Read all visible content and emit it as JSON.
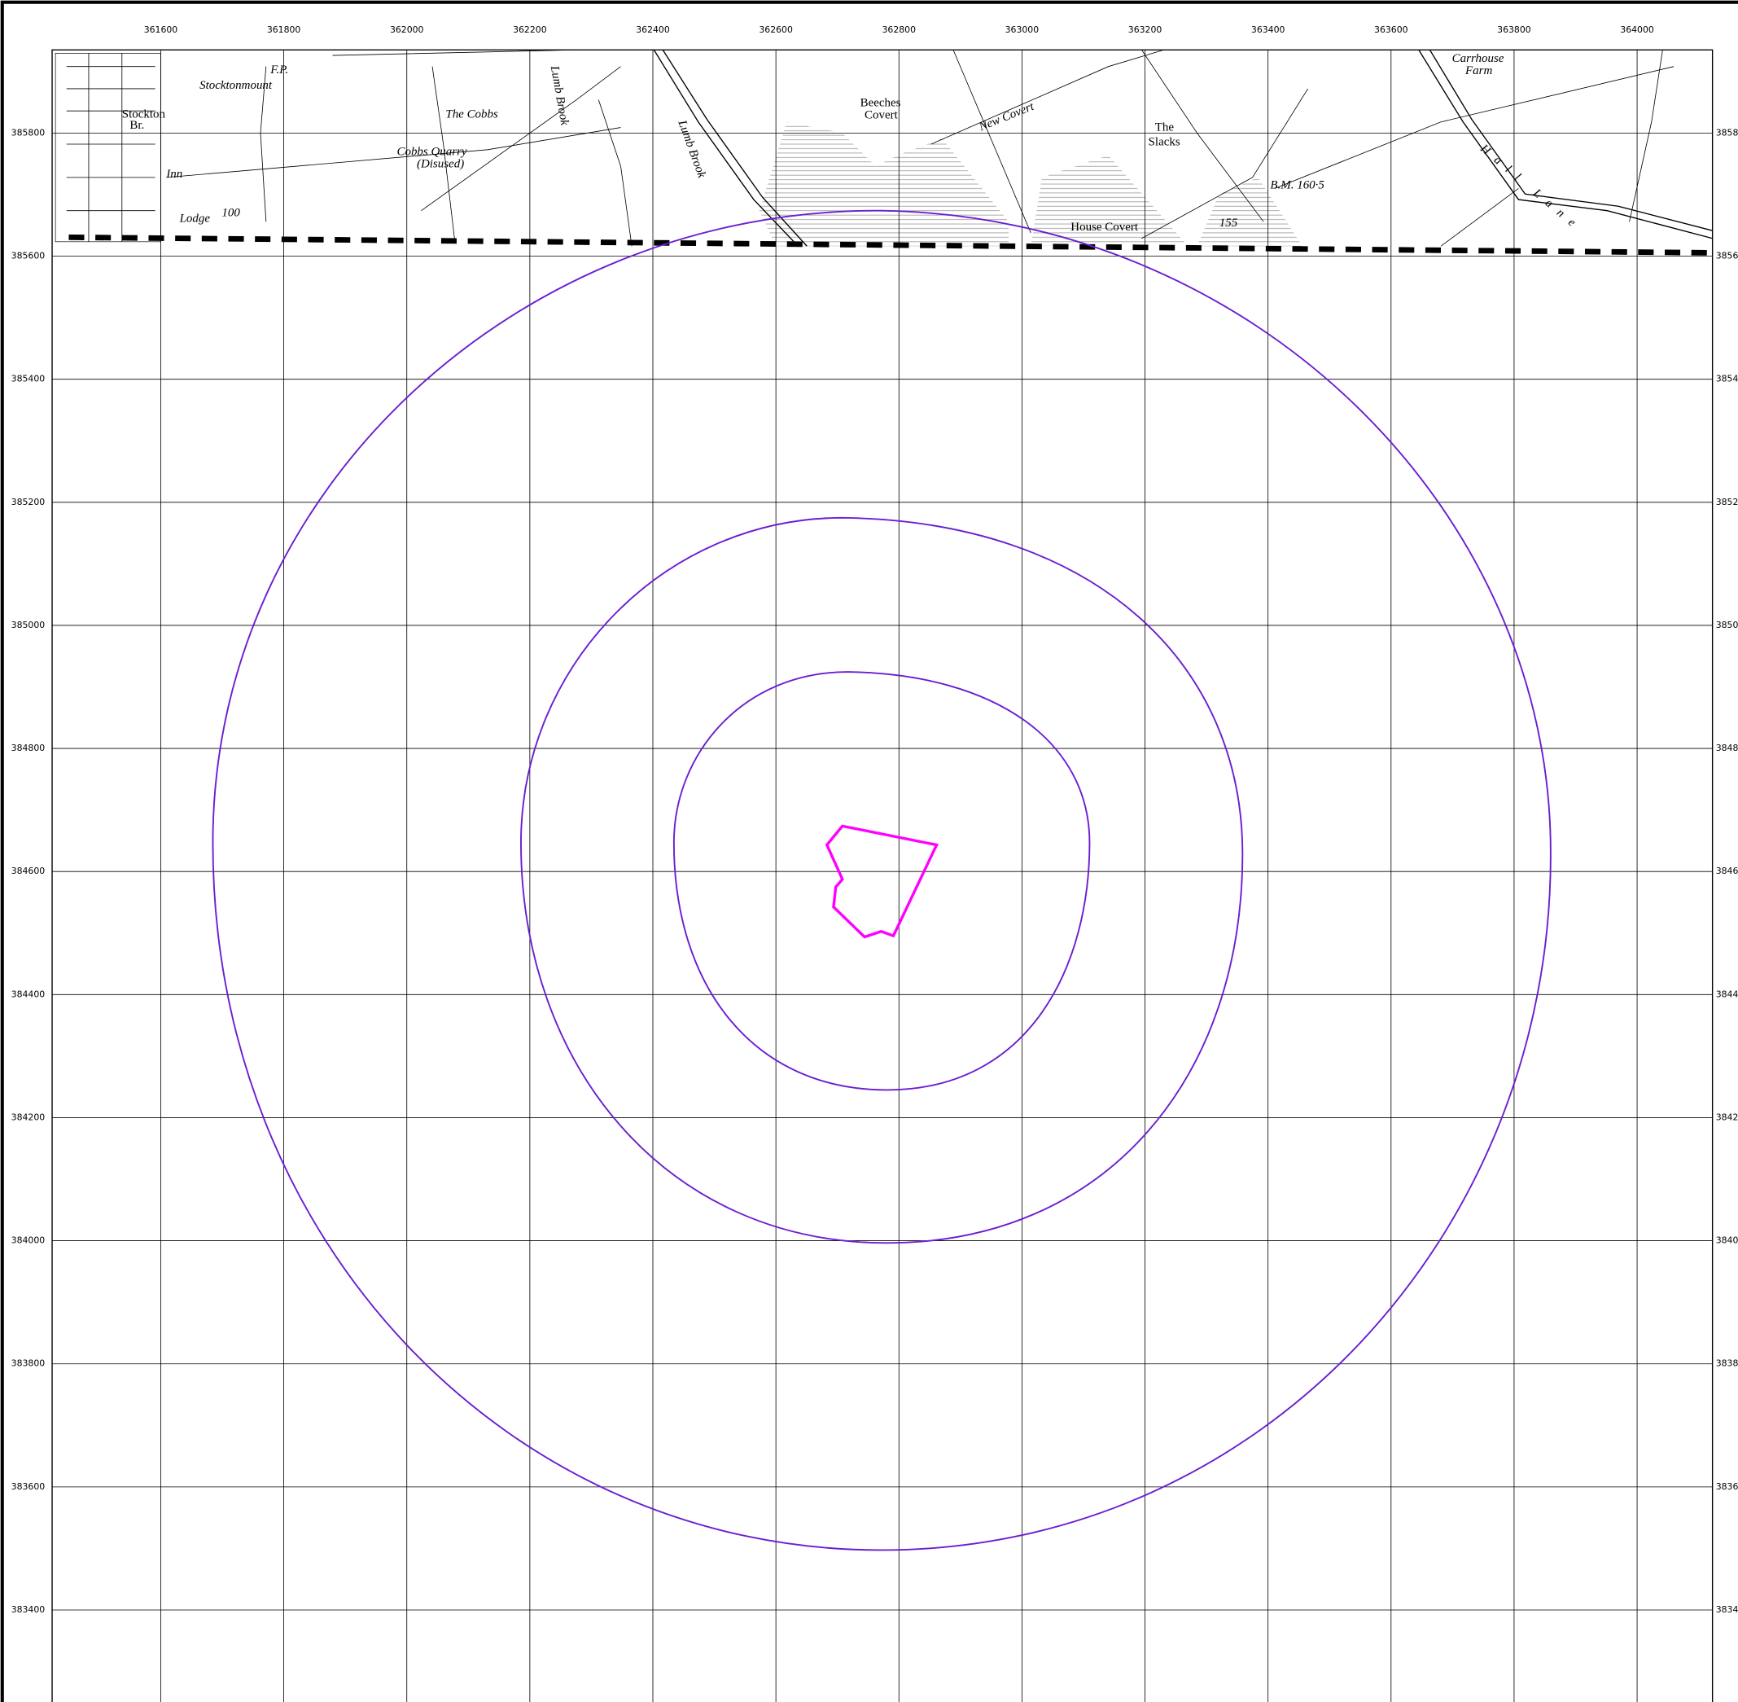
{
  "grid": {
    "xticks": [
      361600,
      361800,
      362000,
      362200,
      362400,
      362600,
      362800,
      363000,
      363200,
      363400,
      363600,
      363800,
      364000
    ],
    "yticks": [
      385800,
      385600,
      385400,
      385200,
      385000,
      384800,
      384600,
      384400,
      384200,
      384000,
      383800,
      383600,
      383400
    ]
  },
  "map_labels": [
    "Stocktonmount",
    "The Cobbs",
    "Cobbs Quarry",
    "(Disused)",
    "Lumb Brook",
    "Lumb Brook",
    "Beeches",
    "Covert",
    "New Covert",
    "The",
    "Slacks",
    "House Covert",
    "B.M. 160·5",
    "155",
    "Carrhouse",
    "Farm",
    "Hall Lane",
    "Lodge",
    "100",
    "Inn",
    "Stockton",
    "Br.",
    "F.P."
  ]
}
